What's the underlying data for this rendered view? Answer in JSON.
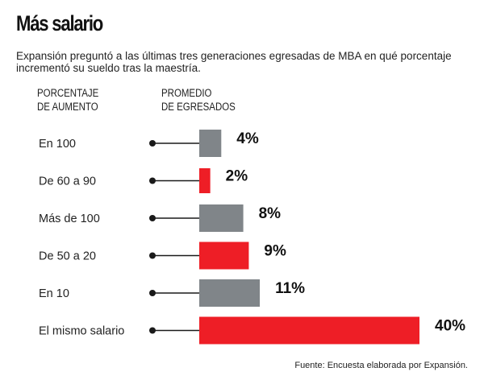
{
  "title": "Más salario",
  "subtitle": "Expansión preguntó a las últimas tres generaciones egresadas de MBA en qué porcentaje incrementó su sueldo tras la maestría.",
  "column_headers": {
    "left_line1": "PORCENTAJE",
    "left_line2": "DE AUMENTO",
    "right_line1": "PROMEDIO",
    "right_line2": "DE EGRESADOS"
  },
  "source": "Fuente: Encuesta elaborada por Expansión.",
  "colors": {
    "gray": "#808589",
    "red": "#ee1e26",
    "dot": "#1a1a1a"
  },
  "chart_data": {
    "type": "bar",
    "orientation": "horizontal",
    "categories": [
      "En 100",
      "De 60 a 90",
      "Más de 100",
      "De 50 a 20",
      "En 10",
      "El mismo salario"
    ],
    "values": [
      4,
      2,
      8,
      9,
      11,
      40
    ],
    "value_labels": [
      "4%",
      "2%",
      "8%",
      "9%",
      "11%",
      "40%"
    ],
    "bar_colors": [
      "gray",
      "red",
      "gray",
      "red",
      "gray",
      "red"
    ],
    "unit": "%",
    "xlim": [
      0,
      40
    ],
    "grid": false,
    "legend": "none"
  }
}
